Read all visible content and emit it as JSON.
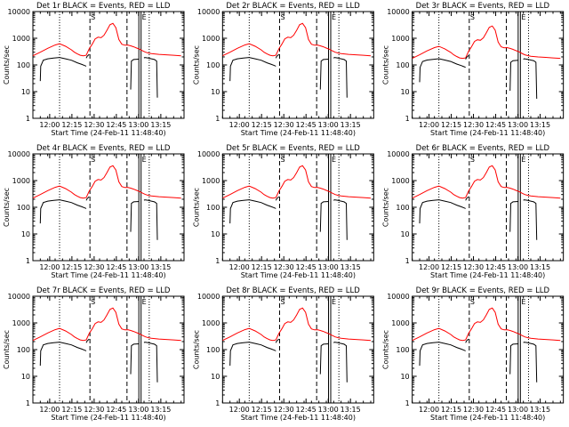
{
  "chart_data": {
    "type": "line",
    "layout": "3x3 grid",
    "xlabel": "Start Time (24-Feb-11 11:48:40)",
    "ylabel": "Counts/sec",
    "x_unit": "minutes after 11:48:40",
    "xlim": [
      0,
      102
    ],
    "ylim": [
      1,
      10000
    ],
    "yscale": "log",
    "yticks": [
      1,
      10,
      100,
      1000,
      10000
    ],
    "ytick_labels": [
      "1",
      "10",
      "100",
      "1000",
      "10000"
    ],
    "xticks": [
      11.33,
      26.33,
      41.33,
      56.33,
      71.33,
      86.33
    ],
    "xtick_labels": [
      "12:00",
      "12:15",
      "12:30",
      "12:45",
      "13:00",
      "13:15"
    ],
    "series_colors": {
      "events": "#000000",
      "lld": "#ff0000"
    },
    "vertical_markers": [
      {
        "x": 18,
        "style": "dotted"
      },
      {
        "x": 38.5,
        "style": "dashed"
      },
      {
        "x": 63.5,
        "style": "dashed"
      },
      {
        "x": 71.5,
        "style": "solid"
      },
      {
        "x": 73,
        "style": "solid"
      },
      {
        "x": 78.5,
        "style": "dotted"
      }
    ],
    "marker_labels": [
      {
        "x": 38.5,
        "text": "S"
      },
      {
        "x": 73,
        "text": "E"
      }
    ],
    "panels": [
      {
        "title": "Det 1r BLACK = Events, RED = LLD",
        "lld_scale": 1.0,
        "events_scale": 1.0
      },
      {
        "title": "Det 2r BLACK = Events, RED = LLD",
        "lld_scale": 1.0,
        "events_scale": 1.0
      },
      {
        "title": "Det 3r BLACK = Events, RED = LLD",
        "lld_scale": 0.8,
        "events_scale": 0.9
      },
      {
        "title": "Det 4r BLACK = Events, RED = LLD",
        "lld_scale": 1.0,
        "events_scale": 1.0
      },
      {
        "title": "Det 5r BLACK = Events, RED = LLD",
        "lld_scale": 1.0,
        "events_scale": 1.0
      },
      {
        "title": "Det 6r BLACK = Events, RED = LLD",
        "lld_scale": 1.0,
        "events_scale": 1.0
      },
      {
        "title": "Det 7r BLACK = Events, RED = LLD",
        "lld_scale": 1.0,
        "events_scale": 1.0
      },
      {
        "title": "Det 8r BLACK = Events, RED = LLD",
        "lld_scale": 1.0,
        "events_scale": 1.0
      },
      {
        "title": "Det 9r BLACK = Events, RED = LLD",
        "lld_scale": 1.0,
        "events_scale": 1.0
      }
    ],
    "lld_series": {
      "name": "LLD",
      "x": [
        0,
        5,
        10,
        15,
        18,
        22,
        26,
        28,
        30,
        32,
        34,
        36,
        38,
        40,
        42,
        44,
        46,
        48,
        50,
        52,
        54,
        56,
        58,
        60,
        62,
        64,
        66,
        68,
        70,
        72,
        74,
        76,
        78,
        80,
        85,
        90,
        95,
        100
      ],
      "y": [
        220,
        300,
        420,
        560,
        620,
        500,
        370,
        300,
        260,
        230,
        220,
        230,
        400,
        600,
        950,
        1100,
        1050,
        1300,
        2000,
        3200,
        3600,
        2500,
        900,
        600,
        550,
        560,
        520,
        480,
        430,
        390,
        340,
        300,
        280,
        265,
        250,
        240,
        230,
        220
      ]
    },
    "events_segments": [
      {
        "x": [
          5,
          5.3,
          7,
          10,
          14,
          18,
          22,
          26,
          30,
          33,
          35,
          36
        ],
        "y": [
          25,
          90,
          150,
          170,
          180,
          190,
          170,
          150,
          120,
          105,
          95,
          90
        ]
      },
      {
        "x": [
          36,
          36.6,
          38
        ],
        "y": [
          180,
          210,
          250
        ]
      },
      {
        "x": [
          66,
          66.5,
          68,
          71.5
        ],
        "y": [
          12,
          140,
          160,
          165
        ]
      },
      {
        "x": [
          75,
          75.5,
          78,
          80,
          82,
          83.5,
          84
        ],
        "y": [
          180,
          190,
          180,
          170,
          160,
          140,
          6
        ]
      }
    ]
  }
}
